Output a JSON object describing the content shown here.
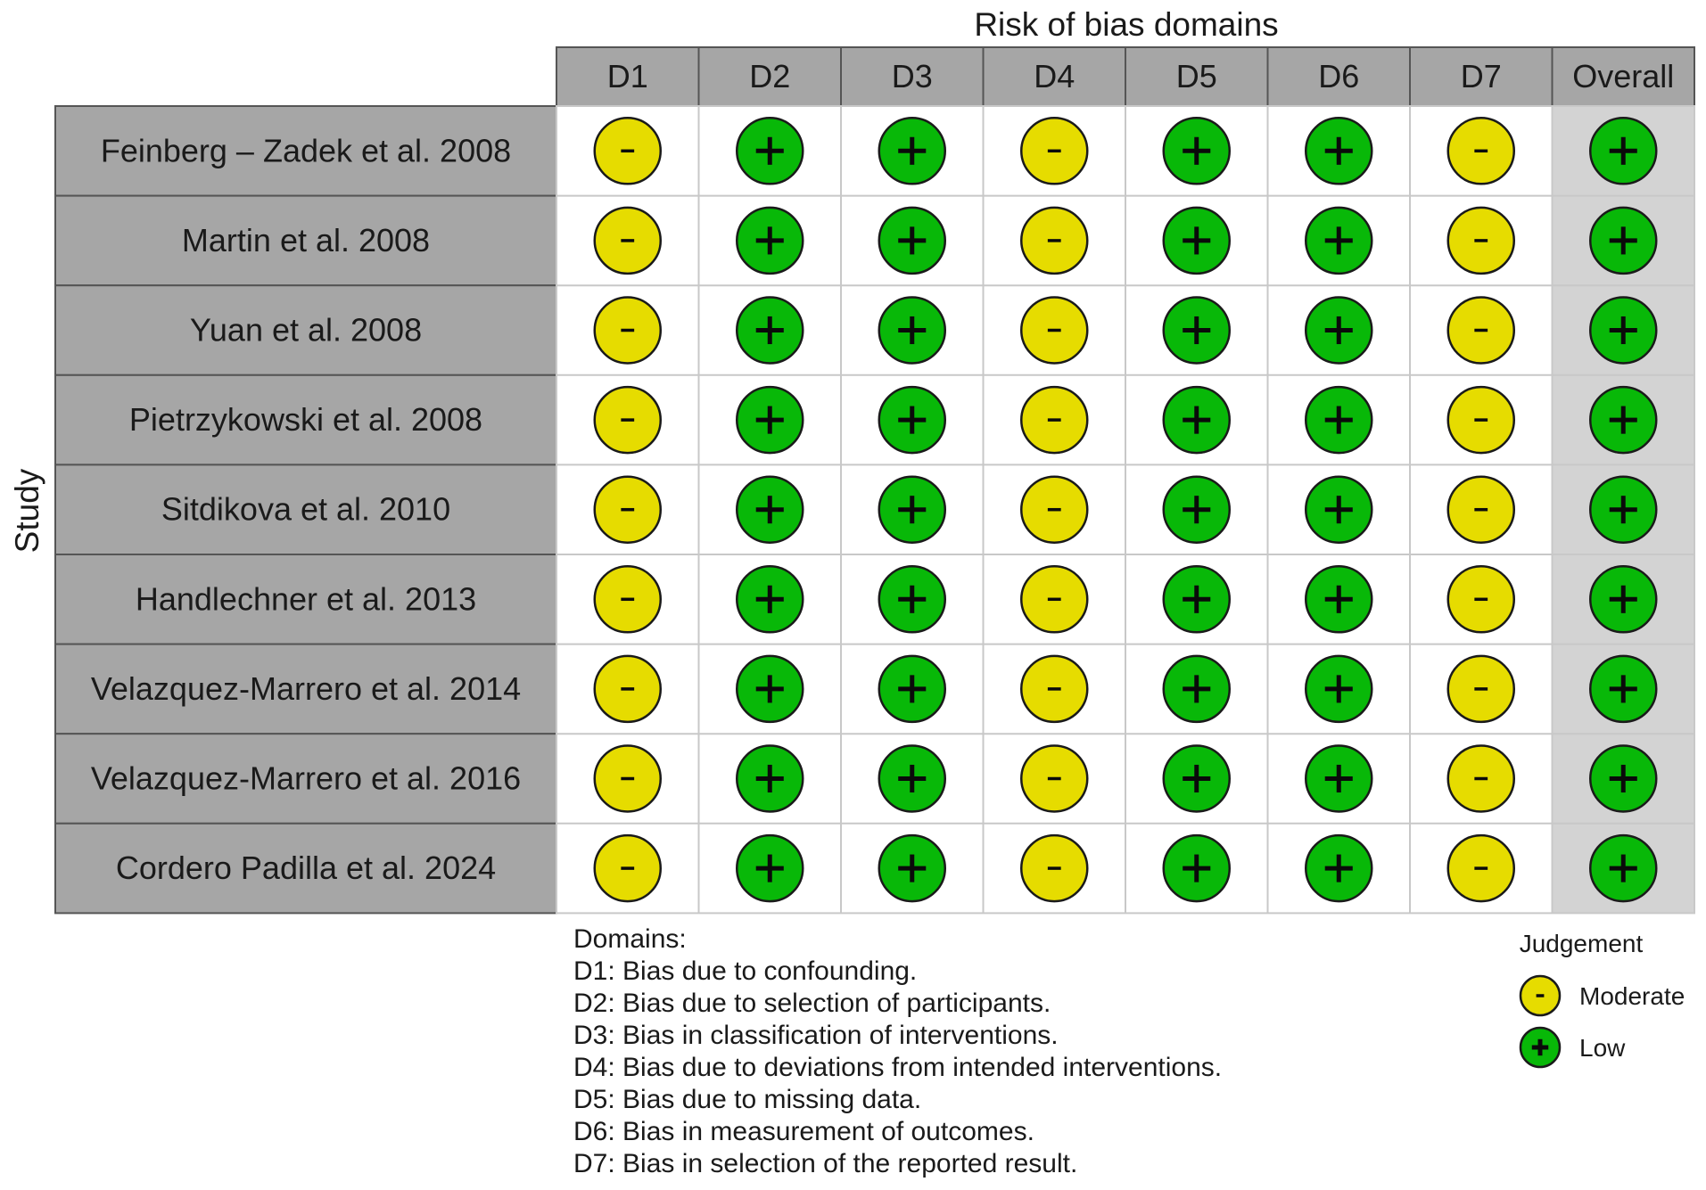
{
  "colors": {
    "header_fill": "#a6a6a6",
    "study_fill": "#a6a6a6",
    "overall_col_fill": "#d3d3d3",
    "grid_line": "#c8c8c8",
    "border": "#555555",
    "moderate": "#e6dc00",
    "low": "#08b808",
    "symbol_stroke": "#1a1a1a"
  },
  "chart_data": {
    "type": "table",
    "title": "Risk of bias domains",
    "ylabel": "Study",
    "columns": [
      "D1",
      "D2",
      "D3",
      "D4",
      "D5",
      "D6",
      "D7",
      "Overall"
    ],
    "studies": [
      "Feinberg – Zadek et al. 2008",
      "Martin et al. 2008",
      "Yuan et al. 2008",
      "Pietrzykowski et al. 2008",
      "Sitdikova et al. 2010",
      "Handlechner et al. 2013",
      "Velazquez-Marrero et al. 2014",
      "Velazquez-Marrero et al. 2016",
      "Cordero Padilla et al. 2024"
    ],
    "judgements": [
      [
        "Moderate",
        "Low",
        "Low",
        "Moderate",
        "Low",
        "Low",
        "Moderate",
        "Low"
      ],
      [
        "Moderate",
        "Low",
        "Low",
        "Moderate",
        "Low",
        "Low",
        "Moderate",
        "Low"
      ],
      [
        "Moderate",
        "Low",
        "Low",
        "Moderate",
        "Low",
        "Low",
        "Moderate",
        "Low"
      ],
      [
        "Moderate",
        "Low",
        "Low",
        "Moderate",
        "Low",
        "Low",
        "Moderate",
        "Low"
      ],
      [
        "Moderate",
        "Low",
        "Low",
        "Moderate",
        "Low",
        "Low",
        "Moderate",
        "Low"
      ],
      [
        "Moderate",
        "Low",
        "Low",
        "Moderate",
        "Low",
        "Low",
        "Moderate",
        "Low"
      ],
      [
        "Moderate",
        "Low",
        "Low",
        "Moderate",
        "Low",
        "Low",
        "Moderate",
        "Low"
      ],
      [
        "Moderate",
        "Low",
        "Low",
        "Moderate",
        "Low",
        "Low",
        "Moderate",
        "Low"
      ],
      [
        "Moderate",
        "Low",
        "Low",
        "Moderate",
        "Low",
        "Low",
        "Moderate",
        "Low"
      ]
    ],
    "symbols": {
      "Moderate": "-",
      "Low": "+"
    },
    "legend": {
      "title": "Judgement",
      "items": [
        {
          "label": "Moderate",
          "symbol": "-"
        },
        {
          "label": "Low",
          "symbol": "+"
        }
      ]
    },
    "domains_note": {
      "heading": "Domains:",
      "lines": [
        "D1: Bias due to confounding.",
        "D2: Bias due to selection of participants.",
        "D3: Bias in classification of interventions.",
        "D4: Bias due to deviations from intended interventions.",
        "D5: Bias due to missing data.",
        "D6: Bias in measurement of outcomes.",
        "D7: Bias in selection of the reported result."
      ]
    }
  }
}
